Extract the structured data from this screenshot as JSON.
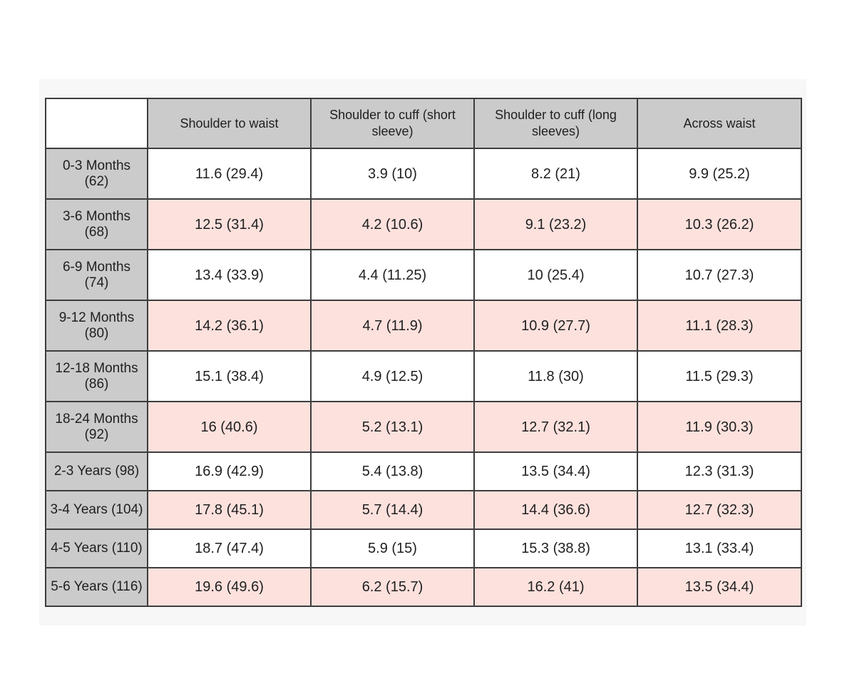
{
  "chart_data": {
    "type": "table",
    "columns": [
      "",
      "Shoulder to waist",
      "Shoulder to cuff (short sleeve)",
      "Shoulder to cuff (long sleeves)",
      "Across waist"
    ],
    "rows": [
      {
        "label": "0-3 Months\n(62)",
        "values": [
          "11.6 (29.4)",
          "3.9 (10)",
          "8.2 (21)",
          "9.9 (25.2)"
        ]
      },
      {
        "label": "3-6 Months\n(68)",
        "values": [
          "12.5 (31.4)",
          "4.2 (10.6)",
          "9.1 (23.2)",
          "10.3 (26.2)"
        ]
      },
      {
        "label": "6-9 Months\n(74)",
        "values": [
          "13.4 (33.9)",
          "4.4 (11.25)",
          "10 (25.4)",
          "10.7 (27.3)"
        ]
      },
      {
        "label": "9-12 Months\n(80)",
        "values": [
          "14.2 (36.1)",
          "4.7 (11.9)",
          "10.9 (27.7)",
          "11.1 (28.3)"
        ]
      },
      {
        "label": "12-18 Months\n(86)",
        "values": [
          "15.1 (38.4)",
          "4.9 (12.5)",
          "11.8 (30)",
          "11.5 (29.3)"
        ]
      },
      {
        "label": "18-24 Months\n(92)",
        "values": [
          "16 (40.6)",
          "5.2 (13.1)",
          "12.7 (32.1)",
          "11.9 (30.3)"
        ]
      },
      {
        "label": "2-3 Years (98)",
        "values": [
          "16.9 (42.9)",
          "5.4 (13.8)",
          "13.5 (34.4)",
          "12.3 (31.3)"
        ]
      },
      {
        "label": "3-4 Years (104)",
        "values": [
          "17.8 (45.1)",
          "5.7 (14.4)",
          "14.4 (36.6)",
          "12.7 (32.3)"
        ]
      },
      {
        "label": "4-5 Years (110)",
        "values": [
          "18.7 (47.4)",
          "5.9 (15)",
          "15.3 (38.8)",
          "13.1 (33.4)"
        ]
      },
      {
        "label": "5-6 Years (116)",
        "values": [
          "19.6 (49.6)",
          "6.2 (15.7)",
          "16.2 (41)",
          "13.5 (34.4)"
        ]
      }
    ],
    "layout_hints": {
      "striping": "alternate data rows shaded pink (2nd, 4th, 6th, 8th, 10th)",
      "header_and_label_cells": "gray",
      "grid": "on"
    }
  },
  "style": {
    "page_background": "#ffffff",
    "panel_background": "#f7f7f8",
    "header_cell_color": "#cbcbcb",
    "label_cell_color": "#cbcbcb",
    "stripe_pink_color": "#fce1dd",
    "plain_row_color": "#ffffff",
    "border_color": "#3d3d3d",
    "text_color": "#1f1f1f"
  }
}
